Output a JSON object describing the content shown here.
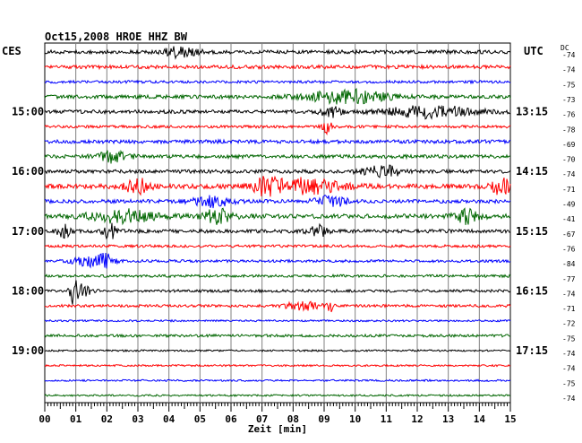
{
  "chart_data": {
    "type": "line",
    "title": "Oct15,2008  HROE HHZ BW",
    "left_label": "CES",
    "right_label": "UTC",
    "dc_label": "DC",
    "xlabel": "Zeit [min]",
    "x_ticks": [
      "00",
      "01",
      "02",
      "03",
      "04",
      "05",
      "06",
      "07",
      "08",
      "09",
      "10",
      "11",
      "12",
      "13",
      "14",
      "15"
    ],
    "xlim": [
      0,
      15
    ],
    "grid": true,
    "trace_colors": [
      "#000000",
      "#ff0000",
      "#0000ff",
      "#006600"
    ],
    "hour_labels_left": [
      "15:00",
      "16:00",
      "17:00",
      "18:00",
      "19:00"
    ],
    "hour_labels_right": [
      "13:15",
      "14:15",
      "15:15",
      "16:15",
      "17:15"
    ],
    "dc_values": [
      "-74",
      "-74",
      "-75",
      "-73",
      "-76",
      "-78",
      "-69",
      "-70",
      "-74",
      "-71",
      "-49",
      "-41",
      "-67",
      "-76",
      "-84",
      "-77",
      "-74",
      "-71",
      "-72",
      "-75",
      "-74",
      "-74",
      "-75",
      "-74"
    ],
    "traces": [
      {
        "amplitude": 4,
        "events": [
          {
            "t": 4.4,
            "width": 0.5,
            "gain": 1.5
          }
        ]
      },
      {
        "amplitude": 4,
        "events": []
      },
      {
        "amplitude": 3,
        "events": []
      },
      {
        "amplitude": 4,
        "events": [
          {
            "t": 9.8,
            "width": 1.3,
            "gain": 1.8
          }
        ]
      },
      {
        "amplitude": 4,
        "events": [
          {
            "t": 9.2,
            "width": 0.3,
            "gain": 1.8
          },
          {
            "t": 12.4,
            "width": 1.4,
            "gain": 1.6
          }
        ]
      },
      {
        "amplitude": 3,
        "events": [
          {
            "t": 9.1,
            "width": 0.15,
            "gain": 3
          }
        ]
      },
      {
        "amplitude": 4,
        "events": []
      },
      {
        "amplitude": 4,
        "events": [
          {
            "t": 2.2,
            "width": 0.5,
            "gain": 1.5
          }
        ]
      },
      {
        "amplitude": 4,
        "events": [
          {
            "t": 10.9,
            "width": 0.6,
            "gain": 1.5
          }
        ]
      },
      {
        "amplitude": 5,
        "events": [
          {
            "t": 3.0,
            "width": 0.4,
            "gain": 1.6
          },
          {
            "t": 7.1,
            "width": 0.3,
            "gain": 2
          },
          {
            "t": 8.3,
            "width": 1.2,
            "gain": 1.7
          },
          {
            "t": 14.7,
            "width": 0.3,
            "gain": 2.2
          }
        ]
      },
      {
        "amplitude": 4,
        "events": [
          {
            "t": 5.4,
            "width": 0.6,
            "gain": 1.5
          },
          {
            "t": 9.2,
            "width": 0.5,
            "gain": 1.5
          }
        ]
      },
      {
        "amplitude": 5,
        "events": [
          {
            "t": 2.5,
            "width": 1.0,
            "gain": 1.4
          },
          {
            "t": 5.6,
            "width": 0.5,
            "gain": 1.5
          },
          {
            "t": 13.6,
            "width": 0.4,
            "gain": 1.6
          }
        ]
      },
      {
        "amplitude": 4,
        "events": [
          {
            "t": 0.6,
            "width": 0.2,
            "gain": 1.8
          },
          {
            "t": 2.1,
            "width": 0.2,
            "gain": 2.2
          },
          {
            "t": 8.8,
            "width": 0.3,
            "gain": 1.5
          }
        ]
      },
      {
        "amplitude": 3,
        "events": []
      },
      {
        "amplitude": 3,
        "events": [
          {
            "t": 1.5,
            "width": 0.6,
            "gain": 1.8
          },
          {
            "t": 2.0,
            "width": 0.2,
            "gain": 2
          }
        ]
      },
      {
        "amplitude": 3,
        "events": []
      },
      {
        "amplitude": 3,
        "events": [
          {
            "t": 0.95,
            "width": 0.15,
            "gain": 5
          },
          {
            "t": 1.15,
            "width": 0.3,
            "gain": 2.5
          }
        ]
      },
      {
        "amplitude": 3,
        "events": [
          {
            "t": 8.3,
            "width": 0.5,
            "gain": 1.6
          },
          {
            "t": 9.2,
            "width": 0.1,
            "gain": 2
          }
        ]
      },
      {
        "amplitude": 2,
        "events": []
      },
      {
        "amplitude": 3,
        "events": []
      },
      {
        "amplitude": 2,
        "events": []
      },
      {
        "amplitude": 2,
        "events": []
      },
      {
        "amplitude": 2,
        "events": []
      },
      {
        "amplitude": 2,
        "events": []
      }
    ]
  }
}
